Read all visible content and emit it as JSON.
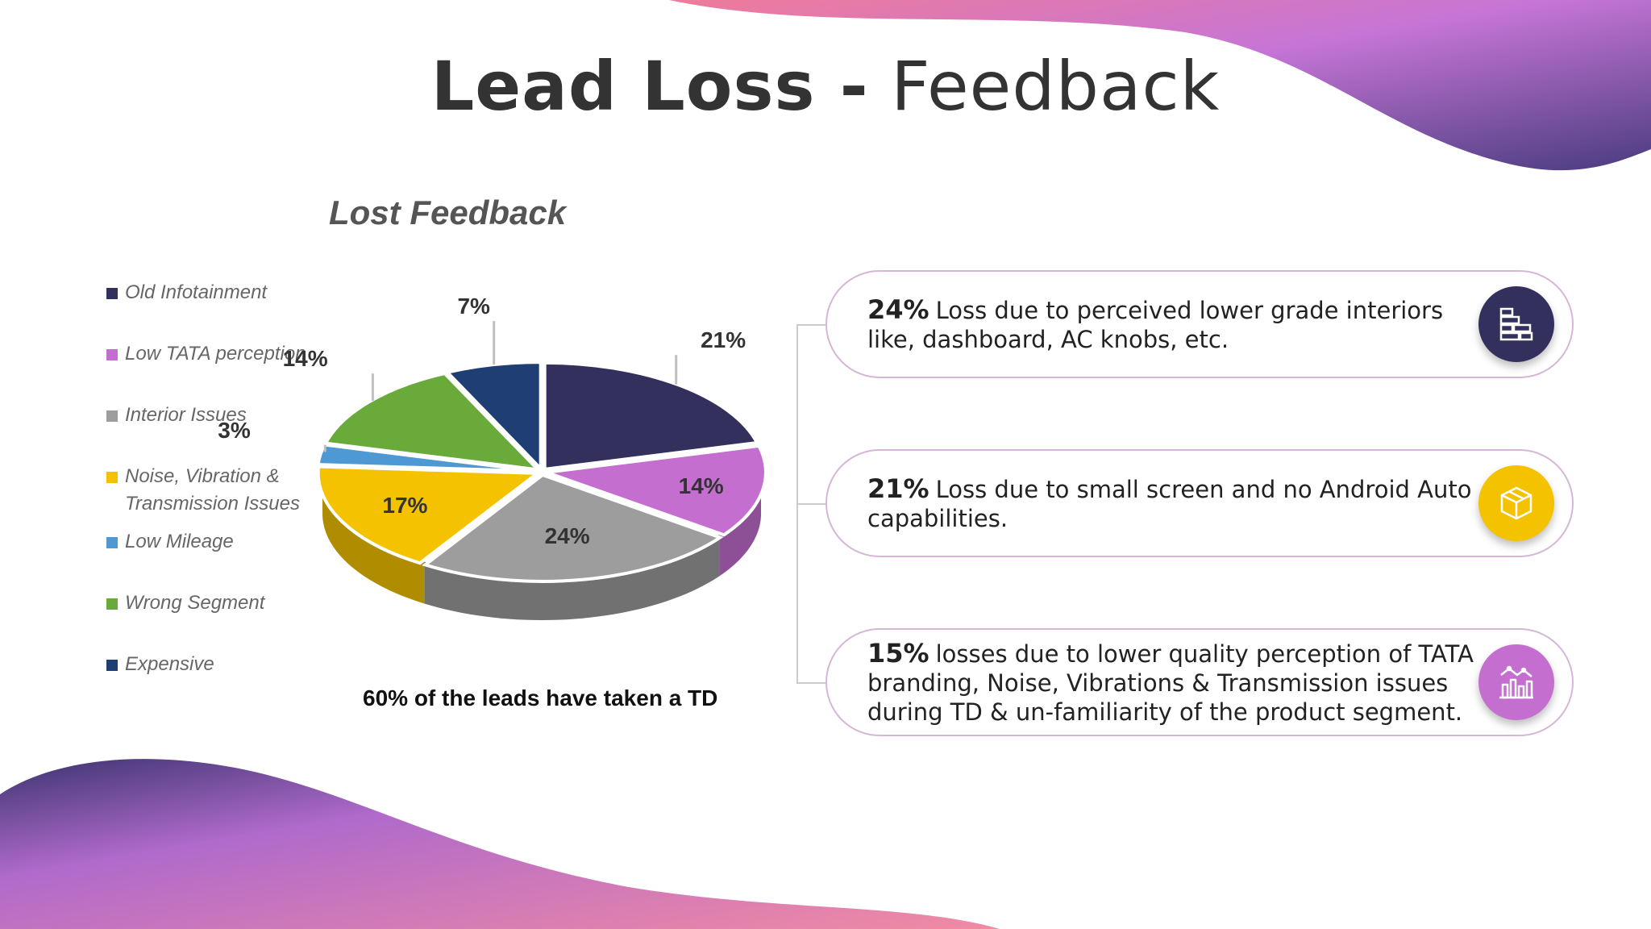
{
  "slide": {
    "title_bold": "Lead Loss -",
    "title_light": "Feedback",
    "note": "60% of the leads have taken a TD"
  },
  "chart_data": {
    "type": "pie",
    "title": "Lost Feedback",
    "legend_position": "left",
    "categories": [
      "Old Infotainment",
      "Low TATA perception",
      "Interior Issues",
      "Noise, Vibration & Transmission Issues",
      "Low Mileage",
      "Wrong Segment",
      "Expensive"
    ],
    "values": [
      21,
      14,
      24,
      17,
      3,
      14,
      7
    ],
    "labels": [
      "21%",
      "14%",
      "24%",
      "17%",
      "3%",
      "14%",
      "7%"
    ],
    "colors": [
      "#33305e",
      "#c46fd0",
      "#9d9d9d",
      "#f5c200",
      "#4e98d4",
      "#6aaa3a",
      "#1f3e74"
    ]
  },
  "cards": [
    {
      "pct": "24%",
      "text": "Loss due to perceived lower grade interiors like, dashboard, AC knobs, etc.",
      "icon": "brick-wall-icon",
      "icon_color": "#33305e"
    },
    {
      "pct": "21%",
      "text": "Loss due to small screen and no Android Auto capabilities.",
      "icon": "cube-box-icon",
      "icon_color": "#f5c200"
    },
    {
      "pct": "15%",
      "text": "losses due to lower quality perception of TATA branding, Noise, Vibrations & Transmission issues during TD & un-familiarity of the product segment.",
      "icon": "bar-chart-trend-icon",
      "icon_color": "#c46fd0"
    }
  ]
}
